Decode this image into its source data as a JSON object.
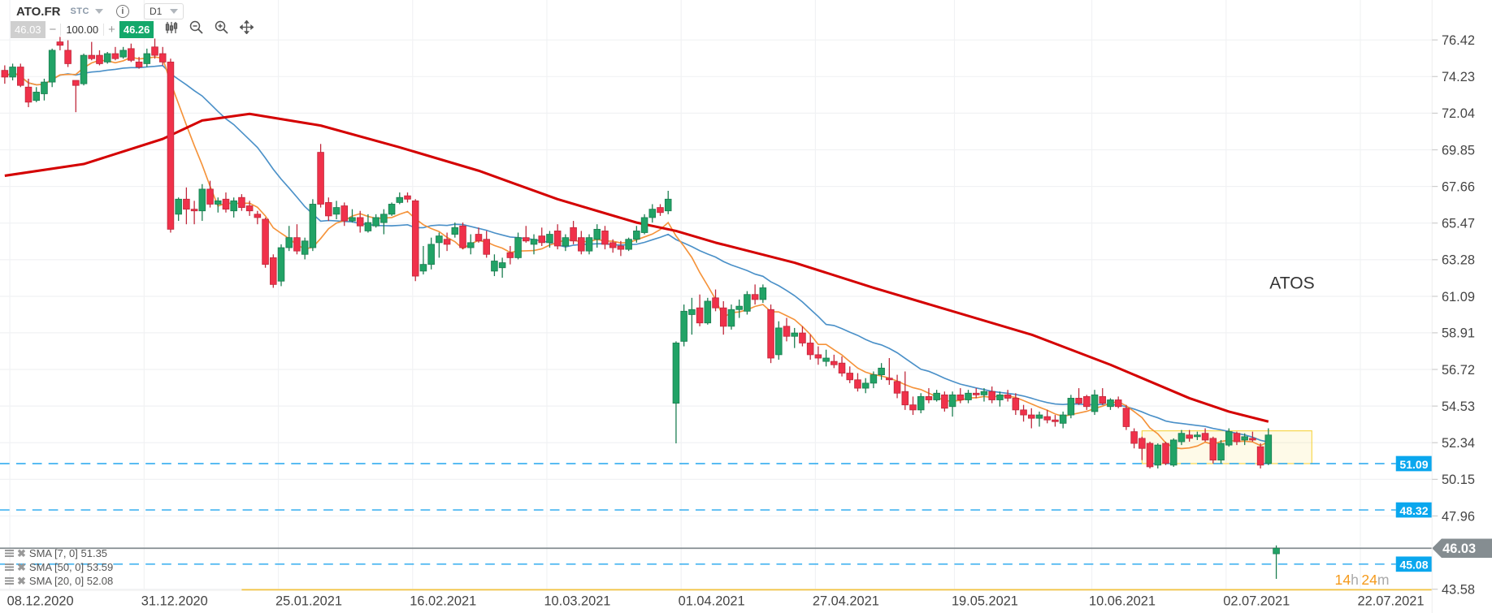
{
  "toolbar": {
    "symbol": "ATO.FR",
    "type": "STC",
    "timeframe": "D1",
    "bid": "46.03",
    "volume": "100.00",
    "ask": "46.26",
    "minus": "−",
    "plus": "+",
    "icons": [
      "info-icon",
      "candles-icon",
      "zoom-out-icon",
      "zoom-in-icon",
      "move-icon"
    ]
  },
  "legend": [
    {
      "label": "SMA [7, 0] 51.35",
      "color": "#f5933a"
    },
    {
      "label": "SMA [50, 0] 53.59",
      "color": "#d40000"
    },
    {
      "label": "SMA [20, 0] 52.08",
      "color": "#4a90c8"
    }
  ],
  "countdown": {
    "h": "14",
    "h_unit": "h",
    "m": "24",
    "m_unit": "m"
  },
  "chart_data": {
    "type": "candlestick",
    "title": "ATOS",
    "ylim": [
      43.0,
      77.5
    ],
    "y_ticks": [
      "76.42",
      "74.23",
      "72.04",
      "69.85",
      "67.66",
      "65.47",
      "63.28",
      "61.09",
      "58.91",
      "56.72",
      "54.53",
      "52.34",
      "50.15",
      "47.96",
      "43.58"
    ],
    "x_labels": [
      {
        "label": "08.12.2020",
        "index": 4.5
      },
      {
        "label": "31.12.2020",
        "index": 21.5
      },
      {
        "label": "25.01.2021",
        "index": 38.5
      },
      {
        "label": "16.02.2021",
        "index": 55.5
      },
      {
        "label": "10.03.2021",
        "index": 72.5
      },
      {
        "label": "01.04.2021",
        "index": 89.5
      },
      {
        "label": "27.04.2021",
        "index": 106.5
      },
      {
        "label": "19.05.2021",
        "index": 124.1
      },
      {
        "label": "10.06.2021",
        "index": 141.5
      },
      {
        "label": "02.07.2021",
        "index": 158.5
      },
      {
        "label": "22.07.2021",
        "index": 175.5
      }
    ],
    "colors": {
      "up": "#21a366",
      "down": "#f0314a",
      "sma7": "#f5933a",
      "sma20": "#4a90c8",
      "sma50": "#d40000",
      "level": "#22a6ee",
      "last": "#858d91",
      "zone": "#f7d64a"
    },
    "ohlc": [
      [
        74.6,
        74.9,
        73.8,
        74.2
      ],
      [
        74.2,
        75.0,
        74.0,
        74.8
      ],
      [
        74.8,
        75.0,
        73.6,
        73.7
      ],
      [
        73.6,
        74.1,
        72.4,
        72.7
      ],
      [
        72.8,
        73.6,
        72.7,
        73.3
      ],
      [
        73.2,
        74.1,
        72.8,
        73.9
      ],
      [
        73.9,
        75.9,
        73.6,
        75.8
      ],
      [
        76.3,
        76.6,
        75.8,
        76.1
      ],
      [
        75.8,
        76.4,
        74.8,
        75.0
      ],
      [
        74.0,
        74.0,
        72.1,
        73.7
      ],
      [
        73.8,
        75.6,
        73.7,
        75.5
      ],
      [
        75.5,
        76.3,
        75.2,
        75.3
      ],
      [
        75.5,
        75.8,
        74.9,
        75.0
      ],
      [
        75.1,
        75.7,
        75.0,
        75.6
      ],
      [
        75.6,
        76.0,
        75.2,
        75.3
      ],
      [
        75.4,
        76.0,
        75.3,
        75.8
      ],
      [
        75.9,
        76.2,
        75.1,
        75.2
      ],
      [
        75.1,
        75.4,
        74.7,
        74.8
      ],
      [
        75.0,
        75.9,
        74.8,
        75.6
      ],
      [
        76.0,
        76.5,
        75.3,
        75.5
      ],
      [
        75.6,
        76.0,
        74.9,
        75.1
      ],
      [
        75.1,
        75.3,
        64.9,
        65.1
      ],
      [
        66.0,
        67.0,
        65.6,
        66.9
      ],
      [
        66.9,
        67.6,
        65.4,
        66.3
      ],
      [
        66.3,
        66.8,
        65.4,
        66.2
      ],
      [
        66.2,
        67.8,
        65.6,
        67.5
      ],
      [
        67.5,
        68.0,
        66.4,
        66.6
      ],
      [
        66.6,
        67.0,
        66.1,
        66.8
      ],
      [
        66.9,
        67.3,
        66.1,
        66.3
      ],
      [
        66.2,
        67.0,
        65.8,
        66.8
      ],
      [
        67.0,
        67.2,
        66.2,
        66.4
      ],
      [
        66.5,
        66.8,
        65.9,
        66.2
      ],
      [
        66.0,
        66.2,
        65.4,
        65.8
      ],
      [
        65.7,
        65.8,
        62.8,
        63.0
      ],
      [
        63.4,
        63.6,
        61.6,
        61.8
      ],
      [
        62.0,
        64.2,
        61.7,
        64.0
      ],
      [
        64.0,
        65.3,
        63.8,
        64.6
      ],
      [
        64.6,
        65.4,
        63.6,
        63.8
      ],
      [
        63.6,
        64.6,
        63.3,
        64.4
      ],
      [
        64.0,
        66.9,
        63.8,
        66.6
      ],
      [
        69.7,
        70.2,
        66.4,
        66.6
      ],
      [
        66.7,
        67.0,
        65.6,
        65.9
      ],
      [
        66.0,
        66.8,
        65.7,
        66.4
      ],
      [
        66.5,
        66.7,
        65.3,
        65.6
      ],
      [
        65.6,
        66.3,
        65.5,
        65.8
      ],
      [
        65.8,
        66.2,
        64.9,
        65.3
      ],
      [
        65.0,
        66.0,
        64.9,
        65.5
      ],
      [
        65.3,
        66.0,
        65.2,
        65.8
      ],
      [
        65.5,
        66.3,
        64.8,
        66.0
      ],
      [
        66.0,
        66.7,
        65.9,
        66.6
      ],
      [
        66.7,
        67.3,
        66.6,
        67.0
      ],
      [
        67.1,
        67.3,
        66.7,
        66.9
      ],
      [
        66.8,
        66.9,
        62.0,
        62.3
      ],
      [
        62.6,
        64.1,
        62.4,
        63.0
      ],
      [
        63.0,
        64.6,
        62.7,
        64.2
      ],
      [
        64.3,
        64.9,
        63.4,
        64.7
      ],
      [
        64.5,
        64.9,
        63.8,
        64.2
      ],
      [
        64.8,
        65.5,
        64.6,
        65.2
      ],
      [
        65.3,
        65.5,
        63.9,
        64.0
      ],
      [
        64.0,
        64.8,
        63.6,
        64.3
      ],
      [
        64.8,
        65.2,
        64.3,
        64.4
      ],
      [
        64.5,
        65.0,
        63.4,
        63.6
      ],
      [
        62.6,
        63.6,
        62.3,
        63.2
      ],
      [
        62.8,
        63.4,
        62.2,
        63.1
      ],
      [
        63.7,
        64.1,
        63.0,
        63.4
      ],
      [
        63.4,
        64.9,
        63.3,
        64.6
      ],
      [
        64.6,
        65.3,
        64.3,
        64.4
      ],
      [
        64.2,
        64.8,
        63.6,
        64.5
      ],
      [
        64.7,
        65.2,
        64.1,
        64.3
      ],
      [
        64.3,
        65.0,
        64.0,
        64.8
      ],
      [
        65.0,
        65.4,
        63.9,
        64.1
      ],
      [
        64.1,
        64.8,
        63.8,
        64.6
      ],
      [
        65.2,
        65.6,
        64.2,
        64.4
      ],
      [
        64.6,
        65.0,
        63.6,
        63.8
      ],
      [
        63.8,
        64.8,
        63.6,
        64.6
      ],
      [
        64.5,
        65.4,
        64.0,
        65.1
      ],
      [
        65.0,
        65.3,
        63.9,
        64.2
      ],
      [
        64.3,
        64.5,
        63.7,
        64.0
      ],
      [
        64.1,
        64.4,
        63.5,
        63.9
      ],
      [
        63.9,
        64.6,
        63.8,
        64.5
      ],
      [
        64.5,
        65.3,
        64.3,
        65.0
      ],
      [
        64.9,
        66.0,
        64.8,
        65.8
      ],
      [
        65.8,
        66.6,
        65.5,
        66.3
      ],
      [
        66.4,
        66.6,
        65.9,
        66.1
      ],
      [
        66.2,
        67.4,
        66.0,
        66.9
      ],
      [
        54.7,
        58.4,
        52.3,
        58.3
      ],
      [
        58.4,
        60.6,
        58.1,
        60.2
      ],
      [
        60.0,
        61.0,
        58.8,
        60.3
      ],
      [
        60.4,
        61.2,
        59.3,
        59.5
      ],
      [
        59.5,
        61.0,
        59.4,
        60.8
      ],
      [
        61.0,
        61.5,
        60.2,
        60.4
      ],
      [
        60.4,
        60.8,
        58.8,
        59.3
      ],
      [
        59.3,
        60.6,
        59.1,
        60.3
      ],
      [
        60.3,
        60.9,
        59.8,
        60.5
      ],
      [
        60.2,
        61.4,
        60.0,
        61.2
      ],
      [
        61.2,
        61.8,
        60.6,
        60.9
      ],
      [
        60.9,
        61.8,
        60.7,
        61.6
      ],
      [
        60.3,
        60.6,
        57.1,
        57.4
      ],
      [
        57.6,
        59.6,
        57.3,
        59.2
      ],
      [
        59.3,
        59.8,
        58.4,
        58.7
      ],
      [
        58.7,
        59.2,
        58.0,
        58.9
      ],
      [
        58.9,
        59.3,
        58.1,
        58.3
      ],
      [
        58.3,
        58.8,
        57.3,
        57.6
      ],
      [
        57.6,
        58.1,
        57.0,
        57.4
      ],
      [
        57.2,
        57.9,
        56.9,
        57.4
      ],
      [
        57.2,
        57.6,
        56.8,
        57.0
      ],
      [
        57.1,
        57.5,
        56.3,
        56.5
      ],
      [
        56.5,
        56.9,
        55.9,
        56.1
      ],
      [
        56.1,
        56.5,
        55.4,
        55.6
      ],
      [
        55.6,
        56.2,
        55.3,
        55.9
      ],
      [
        55.9,
        56.6,
        55.6,
        56.4
      ],
      [
        56.4,
        57.1,
        56.1,
        56.8
      ],
      [
        56.2,
        57.4,
        55.8,
        56.1
      ],
      [
        56.0,
        56.4,
        55.0,
        55.3
      ],
      [
        55.4,
        56.6,
        54.3,
        54.6
      ],
      [
        54.6,
        55.1,
        54.0,
        54.3
      ],
      [
        54.3,
        55.3,
        54.1,
        55.1
      ],
      [
        55.1,
        55.6,
        54.7,
        54.9
      ],
      [
        54.9,
        55.5,
        54.8,
        55.3
      ],
      [
        55.2,
        55.4,
        54.2,
        54.4
      ],
      [
        54.5,
        55.4,
        53.9,
        55.2
      ],
      [
        55.2,
        55.6,
        54.7,
        54.9
      ],
      [
        54.9,
        55.5,
        54.7,
        55.3
      ],
      [
        55.3,
        55.6,
        55.0,
        55.2
      ],
      [
        55.2,
        55.6,
        54.8,
        55.4
      ],
      [
        55.4,
        55.7,
        54.7,
        54.9
      ],
      [
        54.9,
        55.4,
        54.5,
        55.2
      ],
      [
        55.2,
        55.5,
        54.8,
        55.0
      ],
      [
        55.0,
        55.3,
        54.0,
        54.3
      ],
      [
        54.3,
        54.6,
        53.6,
        54.0
      ],
      [
        54.0,
        54.4,
        53.2,
        53.8
      ],
      [
        53.8,
        54.2,
        53.3,
        54.0
      ],
      [
        53.9,
        54.3,
        53.5,
        53.7
      ],
      [
        53.7,
        54.0,
        53.3,
        53.6
      ],
      [
        53.5,
        54.2,
        53.2,
        54.0
      ],
      [
        54.0,
        55.2,
        53.8,
        55.0
      ],
      [
        55.0,
        55.6,
        54.6,
        54.7
      ],
      [
        55.1,
        55.2,
        54.3,
        54.5
      ],
      [
        54.2,
        55.5,
        54.0,
        55.2
      ],
      [
        55.1,
        55.6,
        54.6,
        54.7
      ],
      [
        54.5,
        55.0,
        54.3,
        54.9
      ],
      [
        54.9,
        55.1,
        54.4,
        54.5
      ],
      [
        54.4,
        54.6,
        53.1,
        53.3
      ],
      [
        53.0,
        53.2,
        52.0,
        52.3
      ],
      [
        52.6,
        52.7,
        51.3,
        52.0
      ],
      [
        52.3,
        52.4,
        50.8,
        50.9
      ],
      [
        51.0,
        52.3,
        50.8,
        52.2
      ],
      [
        52.3,
        52.4,
        51.0,
        51.1
      ],
      [
        51.0,
        52.6,
        50.9,
        52.5
      ],
      [
        52.4,
        53.1,
        52.2,
        52.9
      ],
      [
        52.8,
        53.1,
        52.4,
        52.6
      ],
      [
        52.7,
        53.0,
        52.5,
        52.8
      ],
      [
        52.9,
        53.2,
        52.4,
        52.5
      ],
      [
        52.6,
        52.7,
        51.1,
        51.3
      ],
      [
        51.3,
        52.5,
        51.1,
        52.3
      ],
      [
        52.2,
        53.2,
        52.1,
        53.0
      ],
      [
        52.9,
        53.0,
        52.2,
        52.4
      ],
      [
        52.5,
        52.9,
        52.2,
        52.7
      ],
      [
        52.6,
        53.0,
        52.4,
        52.5
      ],
      [
        52.1,
        52.3,
        50.8,
        51.0
      ],
      [
        51.1,
        53.2,
        51.0,
        52.8
      ],
      [
        45.7,
        46.2,
        44.2,
        46.03
      ]
    ],
    "sma50_points": [
      [
        0,
        68.3
      ],
      [
        10,
        69.0
      ],
      [
        20,
        70.5
      ],
      [
        25,
        71.6
      ],
      [
        31,
        72.0
      ],
      [
        40,
        71.3
      ],
      [
        50,
        70.0
      ],
      [
        60,
        68.6
      ],
      [
        70,
        66.9
      ],
      [
        80,
        65.5
      ],
      [
        85,
        65.0
      ],
      [
        90,
        64.3
      ],
      [
        100,
        63.1
      ],
      [
        110,
        61.6
      ],
      [
        120,
        60.2
      ],
      [
        130,
        58.8
      ],
      [
        140,
        57.0
      ],
      [
        150,
        55.0
      ],
      [
        155,
        54.2
      ],
      [
        160,
        53.6
      ]
    ],
    "levels": [
      {
        "value": 51.09,
        "label": "51.09"
      },
      {
        "value": 48.32,
        "label": "48.32"
      },
      {
        "value": 45.08,
        "label": "45.08"
      }
    ],
    "last_price": {
      "value": 46.03,
      "label": "46.03"
    },
    "zone": {
      "from_index": 144,
      "to_index": 165.5,
      "low": 51.09,
      "high": 53.05
    },
    "baseline": {
      "value": 43.55,
      "from_index": 30
    },
    "annotation": {
      "text": "ATOS",
      "index": 163,
      "price": 61.9
    }
  }
}
